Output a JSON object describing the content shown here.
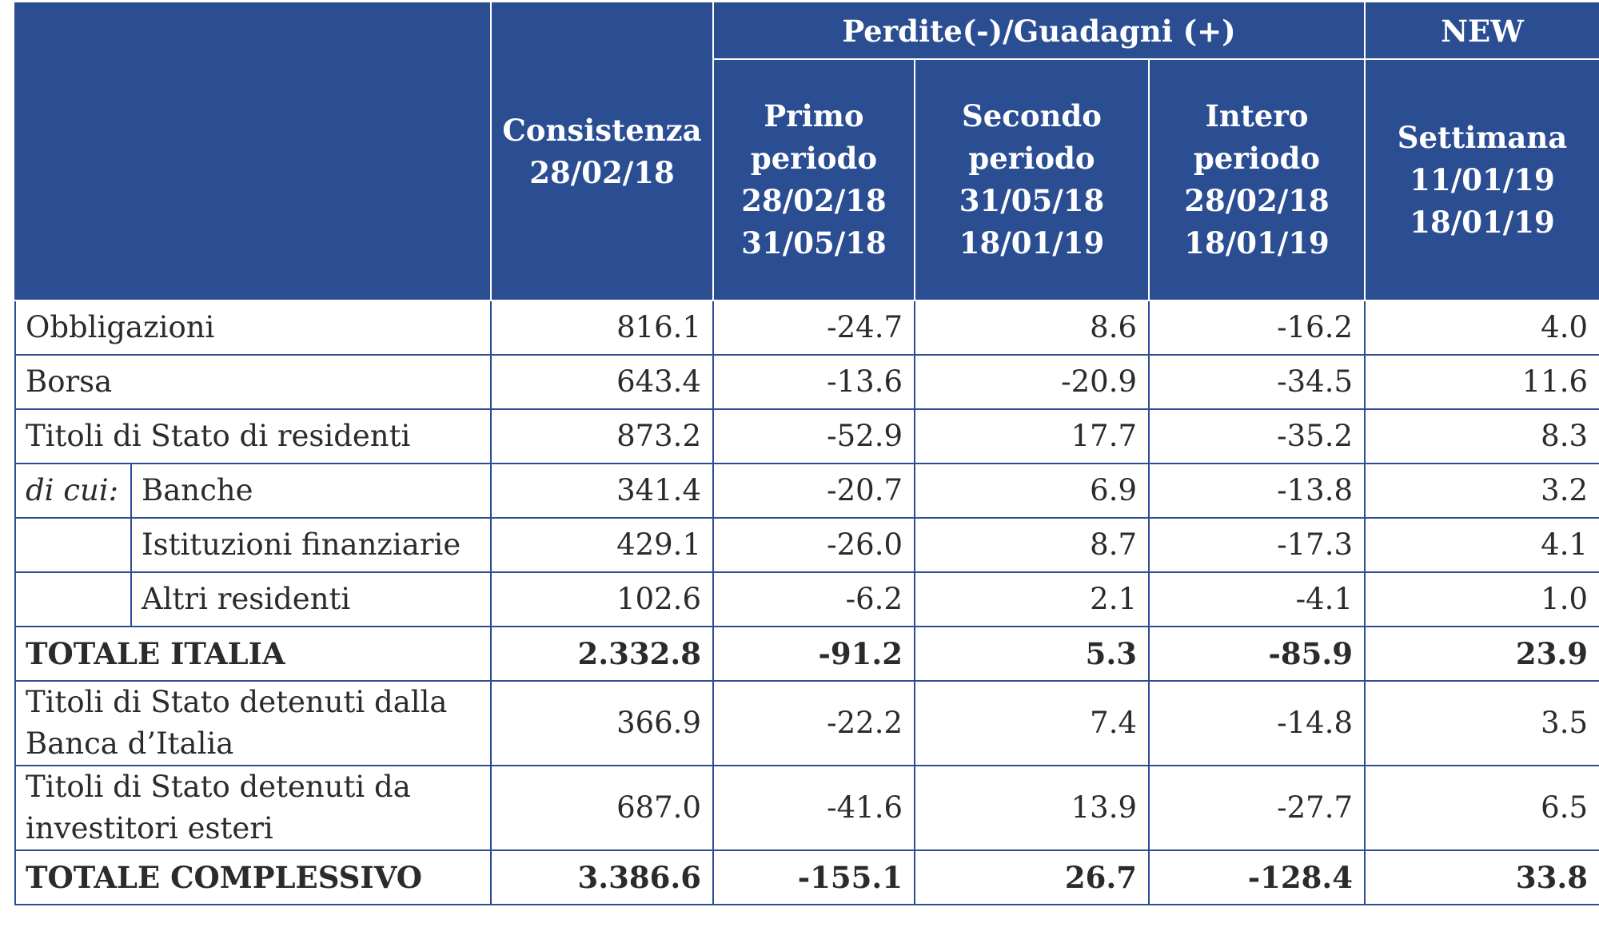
{
  "header": {
    "consistenza": [
      "Consistenza",
      "28/02/18"
    ],
    "group_label": "Perdite(-)/Guadagni (+)",
    "new_label": "NEW",
    "primo": [
      "Primo",
      "periodo",
      "28/02/18",
      "31/05/18"
    ],
    "secondo": [
      "Secondo",
      "periodo",
      "31/05/18",
      "18/01/19"
    ],
    "intero": [
      "Intero",
      "periodo",
      "28/02/18",
      "18/01/19"
    ],
    "settimana": [
      "Settimana",
      "11/01/19",
      "18/01/19"
    ]
  },
  "rows": [
    {
      "label": "Obbligazioni",
      "values": [
        "816.1",
        "-24.7",
        "8.6",
        "-16.2",
        "4.0"
      ]
    },
    {
      "label": "Borsa",
      "values": [
        "643.4",
        "-13.6",
        "-20.9",
        "-34.5",
        "11.6"
      ]
    },
    {
      "label": "Titoli di Stato di residenti",
      "values": [
        "873.2",
        "-52.9",
        "17.7",
        "-35.2",
        "8.3"
      ]
    },
    {
      "prefix": "di cui:",
      "label": "Banche",
      "values": [
        "341.4",
        "-20.7",
        "6.9",
        "-13.8",
        "3.2"
      ]
    },
    {
      "label": "Istituzioni finanziarie",
      "values": [
        "429.1",
        "-26.0",
        "8.7",
        "-17.3",
        "4.1"
      ]
    },
    {
      "label": "Altri residenti",
      "values": [
        "102.6",
        "-6.2",
        "2.1",
        "-4.1",
        "1.0"
      ]
    },
    {
      "label": "TOTALE ITALIA",
      "values": [
        "2.332.8",
        "-91.2",
        "5.3",
        "-85.9",
        "23.9"
      ]
    },
    {
      "label": [
        "Titoli di Stato detenuti dalla",
        "Banca d’Italia"
      ],
      "values": [
        "366.9",
        "-22.2",
        "7.4",
        "-14.8",
        "3.5"
      ]
    },
    {
      "label": [
        "Titoli di Stato detenuti da",
        "investitori esteri"
      ],
      "values": [
        "687.0",
        "-41.6",
        "13.9",
        "-27.7",
        "6.5"
      ]
    },
    {
      "label": "TOTALE COMPLESSIVO",
      "values": [
        "3.386.6",
        "-155.1",
        "26.7",
        "-128.4",
        "33.8"
      ]
    }
  ],
  "colors": {
    "header_bg": "#2b4e93",
    "header_text": "#ffffff",
    "border": "#2b4e93",
    "text": "#2b2b2b"
  }
}
